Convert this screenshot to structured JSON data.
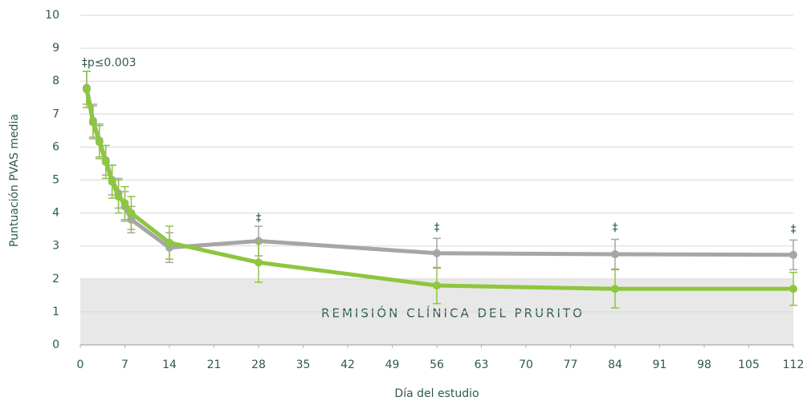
{
  "chart_data": {
    "type": "line",
    "x_label": "Día del estudio",
    "y_label": "Puntuación PVAS media",
    "x": [
      1,
      2,
      3,
      4,
      5,
      6,
      7,
      8,
      14,
      28,
      56,
      84,
      112
    ],
    "series": [
      {
        "color": "#a6a6a6",
        "values": [
          7.8,
          6.8,
          6.2,
          5.6,
          5.0,
          4.6,
          4.2,
          3.8,
          2.95,
          3.15,
          2.78,
          2.75,
          2.73
        ],
        "errors": [
          0.5,
          0.5,
          0.5,
          0.45,
          0.45,
          0.45,
          0.45,
          0.4,
          0.45,
          0.45,
          0.45,
          0.45,
          0.45
        ]
      },
      {
        "color": "#8dc63f",
        "values": [
          7.75,
          6.75,
          6.15,
          5.55,
          4.95,
          4.5,
          4.3,
          4.0,
          3.1,
          2.5,
          1.8,
          1.7,
          1.7
        ],
        "errors": [
          0.55,
          0.5,
          0.5,
          0.5,
          0.5,
          0.5,
          0.5,
          0.5,
          0.5,
          0.6,
          0.55,
          0.58,
          0.5
        ]
      }
    ],
    "xlim": [
      0,
      112
    ],
    "ylim": [
      0,
      10
    ],
    "xticks": [
      0,
      7,
      14,
      21,
      28,
      35,
      42,
      49,
      56,
      63,
      70,
      77,
      84,
      91,
      98,
      105,
      112
    ],
    "yticks": [
      0,
      1,
      2,
      3,
      4,
      5,
      6,
      7,
      8,
      9,
      10
    ],
    "grid": true,
    "shaded_band": {
      "from": 0,
      "to": 2,
      "label": "REMISIÓN CLÍNICA DEL PRURITO",
      "color": "#e8e8e8"
    },
    "annotations": [
      {
        "text": "‡p≤0.003",
        "x": 4.5,
        "y": 8.55
      },
      {
        "text": "‡",
        "x": 28,
        "y": 3.85
      },
      {
        "text": "‡",
        "x": 56,
        "y": 3.55
      },
      {
        "text": "‡",
        "x": 84,
        "y": 3.55
      },
      {
        "text": "‡",
        "x": 112,
        "y": 3.5
      }
    ]
  }
}
